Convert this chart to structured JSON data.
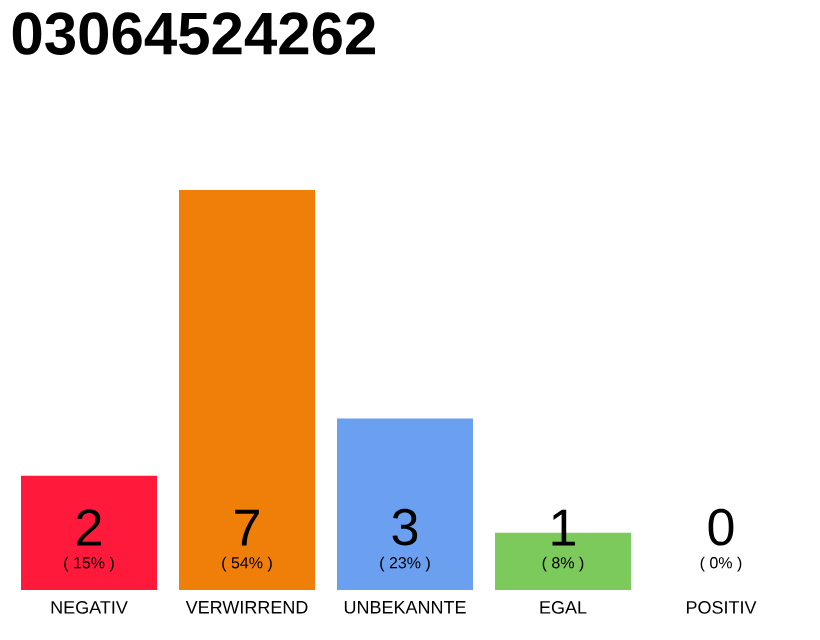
{
  "chart_data": {
    "type": "bar",
    "title": "03064524262",
    "categories": [
      "NEGATIV",
      "VERWIRREND",
      "UNBEKANNTE",
      "EGAL",
      "POSITIV"
    ],
    "values": [
      2,
      7,
      3,
      1,
      0
    ],
    "colors": [
      "#ff1a3c",
      "#f07f0a",
      "#6b9ff0",
      "#7cc95c",
      "#cccccc"
    ],
    "data_labels": true,
    "annotations": [
      "( 15% )",
      "( 54% )",
      "( 23% )",
      "( 8% )",
      "( 0% )"
    ]
  }
}
